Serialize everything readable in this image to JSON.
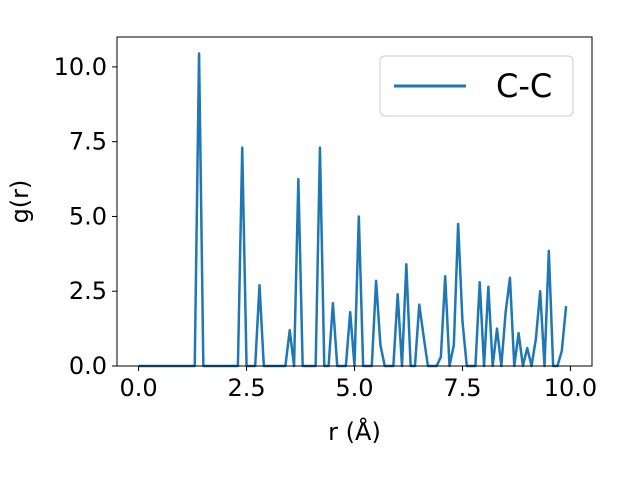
{
  "chart_data": {
    "type": "line",
    "title": "",
    "xlabel": "r (Å)",
    "ylabel": "g(r)",
    "xlim": [
      -0.5,
      10.5
    ],
    "ylim": [
      0,
      11
    ],
    "xticks": [
      0.0,
      2.5,
      5.0,
      7.5,
      10.0
    ],
    "xtick_labels": [
      "0.0",
      "2.5",
      "5.0",
      "7.5",
      "10.0"
    ],
    "yticks": [
      0.0,
      2.5,
      5.0,
      7.5,
      10.0
    ],
    "ytick_labels": [
      "0.0",
      "2.5",
      "5.0",
      "7.5",
      "10.0"
    ],
    "grid": false,
    "legend_position": "top-right",
    "series": [
      {
        "name": "C-C",
        "color": "#1f77b4",
        "x": [
          0.0,
          0.1,
          0.2,
          0.3,
          0.4,
          0.5,
          0.6,
          0.7,
          0.8,
          0.9,
          1.0,
          1.1,
          1.2,
          1.3,
          1.4,
          1.5,
          1.6,
          1.7,
          1.8,
          1.9,
          2.0,
          2.1,
          2.2,
          2.3,
          2.4,
          2.5,
          2.6,
          2.7,
          2.8,
          2.9,
          3.0,
          3.1,
          3.2,
          3.3,
          3.4,
          3.5,
          3.6,
          3.7,
          3.8,
          3.9,
          4.0,
          4.1,
          4.2,
          4.3,
          4.4,
          4.5,
          4.6,
          4.7,
          4.8,
          4.9,
          5.0,
          5.1,
          5.2,
          5.3,
          5.4,
          5.5,
          5.6,
          5.7,
          5.8,
          5.9,
          6.0,
          6.1,
          6.2,
          6.3,
          6.4,
          6.5,
          6.6,
          6.7,
          6.8,
          6.9,
          7.0,
          7.1,
          7.2,
          7.3,
          7.4,
          7.5,
          7.6,
          7.7,
          7.8,
          7.9,
          8.0,
          8.1,
          8.2,
          8.3,
          8.4,
          8.5,
          8.6,
          8.7,
          8.8,
          8.9,
          9.0,
          9.1,
          9.2,
          9.3,
          9.4,
          9.5,
          9.6,
          9.7,
          9.8,
          9.9
        ],
        "y": [
          0,
          0,
          0,
          0,
          0,
          0,
          0,
          0,
          0,
          0,
          0,
          0,
          0,
          0,
          10.45,
          0,
          0,
          0,
          0,
          0,
          0,
          0,
          0,
          0,
          7.3,
          0,
          0,
          0,
          2.7,
          0,
          0,
          0,
          0,
          0,
          0,
          1.2,
          0,
          6.25,
          0,
          0,
          0,
          0,
          7.3,
          0,
          0,
          2.1,
          0,
          0,
          0,
          1.8,
          0,
          5.0,
          0,
          0,
          0,
          2.85,
          0.7,
          0,
          0,
          0,
          2.4,
          0,
          3.4,
          0,
          0,
          2.05,
          1.0,
          0,
          0,
          0,
          0.3,
          3.0,
          0,
          0.7,
          4.75,
          1.5,
          0,
          0,
          0,
          2.8,
          0,
          2.65,
          0,
          1.25,
          0,
          1.8,
          2.95,
          0,
          1.1,
          0,
          0.6,
          0,
          0.9,
          2.5,
          0,
          3.85,
          0,
          0,
          0.5,
          2.0
        ]
      }
    ]
  }
}
